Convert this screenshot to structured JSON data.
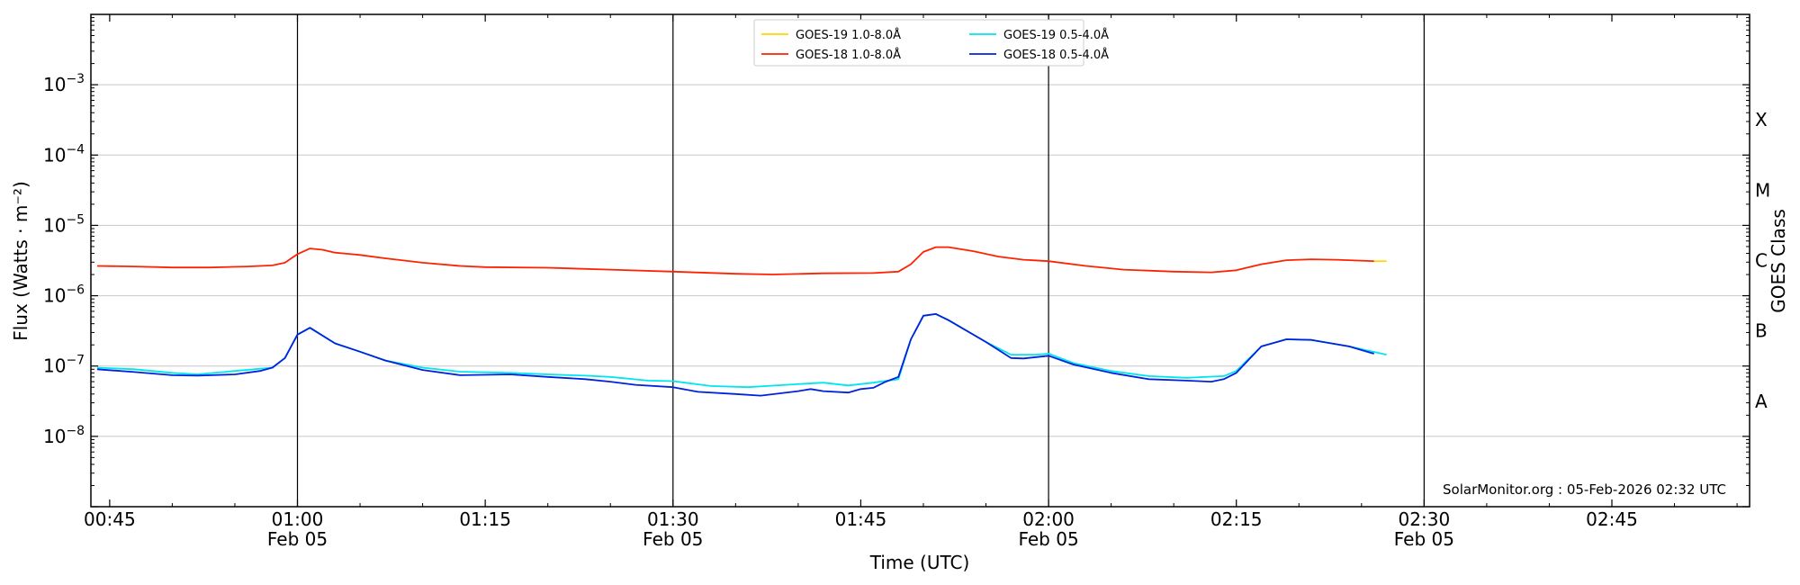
{
  "chart_data": {
    "type": "line",
    "title": "",
    "xlabel": "Time (UTC)",
    "ylabel": "Flux (Watts · m⁻²)",
    "y2label": "GOES Class",
    "yscale": "log",
    "ylim": [
      1e-09,
      0.01
    ],
    "xlim": [
      "00:43:30",
      "02:56:00"
    ],
    "grid": "horizontal at y ticks",
    "legend_position": "top-center",
    "credit": "SolarMonitor.org : 05-Feb-2026 02:32 UTC",
    "x_ticks": [
      {
        "time": "00:45",
        "label": "00:45",
        "date": ""
      },
      {
        "time": "01:00",
        "label": "01:00",
        "date": "Feb 05"
      },
      {
        "time": "01:15",
        "label": "01:15",
        "date": ""
      },
      {
        "time": "01:30",
        "label": "01:30",
        "date": "Feb 05"
      },
      {
        "time": "01:45",
        "label": "01:45",
        "date": ""
      },
      {
        "time": "02:00",
        "label": "02:00",
        "date": "Feb 05"
      },
      {
        "time": "02:15",
        "label": "02:15",
        "date": ""
      },
      {
        "time": "02:30",
        "label": "02:30",
        "date": "Feb 05"
      },
      {
        "time": "02:45",
        "label": "02:45",
        "date": ""
      }
    ],
    "vertical_lines": [
      "01:00",
      "01:30",
      "02:00",
      "02:30"
    ],
    "y_ticks": [
      {
        "value": 1e-08,
        "mantissa": "10",
        "exp": "−8"
      },
      {
        "value": 1e-07,
        "mantissa": "10",
        "exp": "−7"
      },
      {
        "value": 1e-06,
        "mantissa": "10",
        "exp": "−6"
      },
      {
        "value": 1e-05,
        "mantissa": "10",
        "exp": "−5"
      },
      {
        "value": 0.0001,
        "mantissa": "10",
        "exp": "−4"
      },
      {
        "value": 0.001,
        "mantissa": "10",
        "exp": "−3"
      }
    ],
    "goes_classes": [
      {
        "label": "A",
        "value": 3.16e-08
      },
      {
        "label": "B",
        "value": 3.16e-07
      },
      {
        "label": "C",
        "value": 3.16e-06
      },
      {
        "label": "M",
        "value": 3.16e-05
      },
      {
        "label": "X",
        "value": 0.000316
      }
    ],
    "series": [
      {
        "name": "GOES-19 1.0-8.0Å",
        "color": "#ffd700",
        "points": [
          [
            "02:26",
            3.1e-06
          ],
          [
            "02:27",
            3.1e-06
          ]
        ]
      },
      {
        "name": "GOES-18 1.0-8.0Å",
        "color": "#ff2200",
        "points": [
          [
            "00:44",
            2.65e-06
          ],
          [
            "00:47",
            2.6e-06
          ],
          [
            "00:50",
            2.52e-06
          ],
          [
            "00:53",
            2.52e-06
          ],
          [
            "00:56",
            2.6e-06
          ],
          [
            "00:58",
            2.7e-06
          ],
          [
            "00:59",
            2.95e-06
          ],
          [
            "01:00",
            3.9e-06
          ],
          [
            "01:01",
            4.7e-06
          ],
          [
            "01:02",
            4.5e-06
          ],
          [
            "01:03",
            4.1e-06
          ],
          [
            "01:05",
            3.8e-06
          ],
          [
            "01:07",
            3.4e-06
          ],
          [
            "01:10",
            2.95e-06
          ],
          [
            "01:13",
            2.65e-06
          ],
          [
            "01:15",
            2.55e-06
          ],
          [
            "01:20",
            2.5e-06
          ],
          [
            "01:25",
            2.35e-06
          ],
          [
            "01:30",
            2.2e-06
          ],
          [
            "01:35",
            2.05e-06
          ],
          [
            "01:38",
            2e-06
          ],
          [
            "01:42",
            2.08e-06
          ],
          [
            "01:46",
            2.1e-06
          ],
          [
            "01:48",
            2.2e-06
          ],
          [
            "01:49",
            2.8e-06
          ],
          [
            "01:50",
            4.2e-06
          ],
          [
            "01:51",
            4.9e-06
          ],
          [
            "01:52",
            4.9e-06
          ],
          [
            "01:54",
            4.3e-06
          ],
          [
            "01:56",
            3.6e-06
          ],
          [
            "01:58",
            3.25e-06
          ],
          [
            "02:00",
            3.1e-06
          ],
          [
            "02:03",
            2.65e-06
          ],
          [
            "02:06",
            2.35e-06
          ],
          [
            "02:10",
            2.2e-06
          ],
          [
            "02:13",
            2.15e-06
          ],
          [
            "02:15",
            2.3e-06
          ],
          [
            "02:17",
            2.8e-06
          ],
          [
            "02:19",
            3.2e-06
          ],
          [
            "02:21",
            3.3e-06
          ],
          [
            "02:23",
            3.25e-06
          ],
          [
            "02:26",
            3.1e-06
          ]
        ]
      },
      {
        "name": "GOES-19 0.5-4.0Å",
        "color": "#00e5ee",
        "points": [
          [
            "00:44",
            9.5e-08
          ],
          [
            "00:47",
            9e-08
          ],
          [
            "00:50",
            8e-08
          ],
          [
            "00:52",
            7.6e-08
          ],
          [
            "00:55",
            8.5e-08
          ],
          [
            "00:58",
            9.5e-08
          ],
          [
            "00:59",
            1.3e-07
          ],
          [
            "01:00",
            2.8e-07
          ],
          [
            "01:01",
            3.5e-07
          ],
          [
            "01:03",
            2.1e-07
          ],
          [
            "01:05",
            1.6e-07
          ],
          [
            "01:07",
            1.2e-07
          ],
          [
            "01:10",
            9.5e-08
          ],
          [
            "01:13",
            8.3e-08
          ],
          [
            "01:17",
            8e-08
          ],
          [
            "01:20",
            7.6e-08
          ],
          [
            "01:23",
            7.3e-08
          ],
          [
            "01:25",
            7e-08
          ],
          [
            "01:28",
            6.2e-08
          ],
          [
            "01:30",
            6.1e-08
          ],
          [
            "01:33",
            5.2e-08
          ],
          [
            "01:36",
            5e-08
          ],
          [
            "01:39",
            5.4e-08
          ],
          [
            "01:42",
            5.8e-08
          ],
          [
            "01:44",
            5.3e-08
          ],
          [
            "01:46",
            5.8e-08
          ],
          [
            "01:48",
            6.5e-08
          ],
          [
            "01:49",
            2.4e-07
          ],
          [
            "01:50",
            5.2e-07
          ],
          [
            "01:51",
            5.5e-07
          ],
          [
            "01:52",
            4.5e-07
          ],
          [
            "01:55",
            2.2e-07
          ],
          [
            "01:57",
            1.45e-07
          ],
          [
            "01:59",
            1.45e-07
          ],
          [
            "02:00",
            1.5e-07
          ],
          [
            "02:02",
            1.1e-07
          ],
          [
            "02:05",
            8.5e-08
          ],
          [
            "02:08",
            7.2e-08
          ],
          [
            "02:11",
            6.8e-08
          ],
          [
            "02:14",
            7.2e-08
          ],
          [
            "02:15",
            8.5e-08
          ],
          [
            "02:17",
            1.9e-07
          ],
          [
            "02:19",
            2.4e-07
          ],
          [
            "02:21",
            2.35e-07
          ],
          [
            "02:24",
            1.9e-07
          ],
          [
            "02:27",
            1.45e-07
          ]
        ]
      },
      {
        "name": "GOES-18 0.5-4.0Å",
        "color": "#0022dd",
        "points": [
          [
            "00:44",
            9e-08
          ],
          [
            "00:47",
            8.2e-08
          ],
          [
            "00:50",
            7.4e-08
          ],
          [
            "00:52",
            7.3e-08
          ],
          [
            "00:55",
            7.6e-08
          ],
          [
            "00:57",
            8.5e-08
          ],
          [
            "00:58",
            9.5e-08
          ],
          [
            "00:59",
            1.3e-07
          ],
          [
            "01:00",
            2.8e-07
          ],
          [
            "01:01",
            3.5e-07
          ],
          [
            "01:03",
            2.1e-07
          ],
          [
            "01:05",
            1.6e-07
          ],
          [
            "01:07",
            1.2e-07
          ],
          [
            "01:10",
            8.8e-08
          ],
          [
            "01:13",
            7.4e-08
          ],
          [
            "01:17",
            7.6e-08
          ],
          [
            "01:20",
            7e-08
          ],
          [
            "01:23",
            6.5e-08
          ],
          [
            "01:25",
            6e-08
          ],
          [
            "01:27",
            5.4e-08
          ],
          [
            "01:30",
            5e-08
          ],
          [
            "01:32",
            4.3e-08
          ],
          [
            "01:35",
            4e-08
          ],
          [
            "01:37",
            3.8e-08
          ],
          [
            "01:40",
            4.4e-08
          ],
          [
            "01:41",
            4.7e-08
          ],
          [
            "01:42",
            4.4e-08
          ],
          [
            "01:44",
            4.2e-08
          ],
          [
            "01:45",
            4.7e-08
          ],
          [
            "01:46",
            4.9e-08
          ],
          [
            "01:47",
            6e-08
          ],
          [
            "01:48",
            7e-08
          ],
          [
            "01:49",
            2.4e-07
          ],
          [
            "01:50",
            5.2e-07
          ],
          [
            "01:51",
            5.5e-07
          ],
          [
            "01:52",
            4.5e-07
          ],
          [
            "01:55",
            2.2e-07
          ],
          [
            "01:57",
            1.3e-07
          ],
          [
            "01:58",
            1.28e-07
          ],
          [
            "02:00",
            1.4e-07
          ],
          [
            "02:02",
            1.05e-07
          ],
          [
            "02:05",
            8e-08
          ],
          [
            "02:08",
            6.5e-08
          ],
          [
            "02:11",
            6.2e-08
          ],
          [
            "02:13",
            6e-08
          ],
          [
            "02:14",
            6.5e-08
          ],
          [
            "02:15",
            8e-08
          ],
          [
            "02:17",
            1.9e-07
          ],
          [
            "02:19",
            2.4e-07
          ],
          [
            "02:21",
            2.35e-07
          ],
          [
            "02:24",
            1.9e-07
          ],
          [
            "02:26",
            1.5e-07
          ]
        ]
      }
    ]
  }
}
